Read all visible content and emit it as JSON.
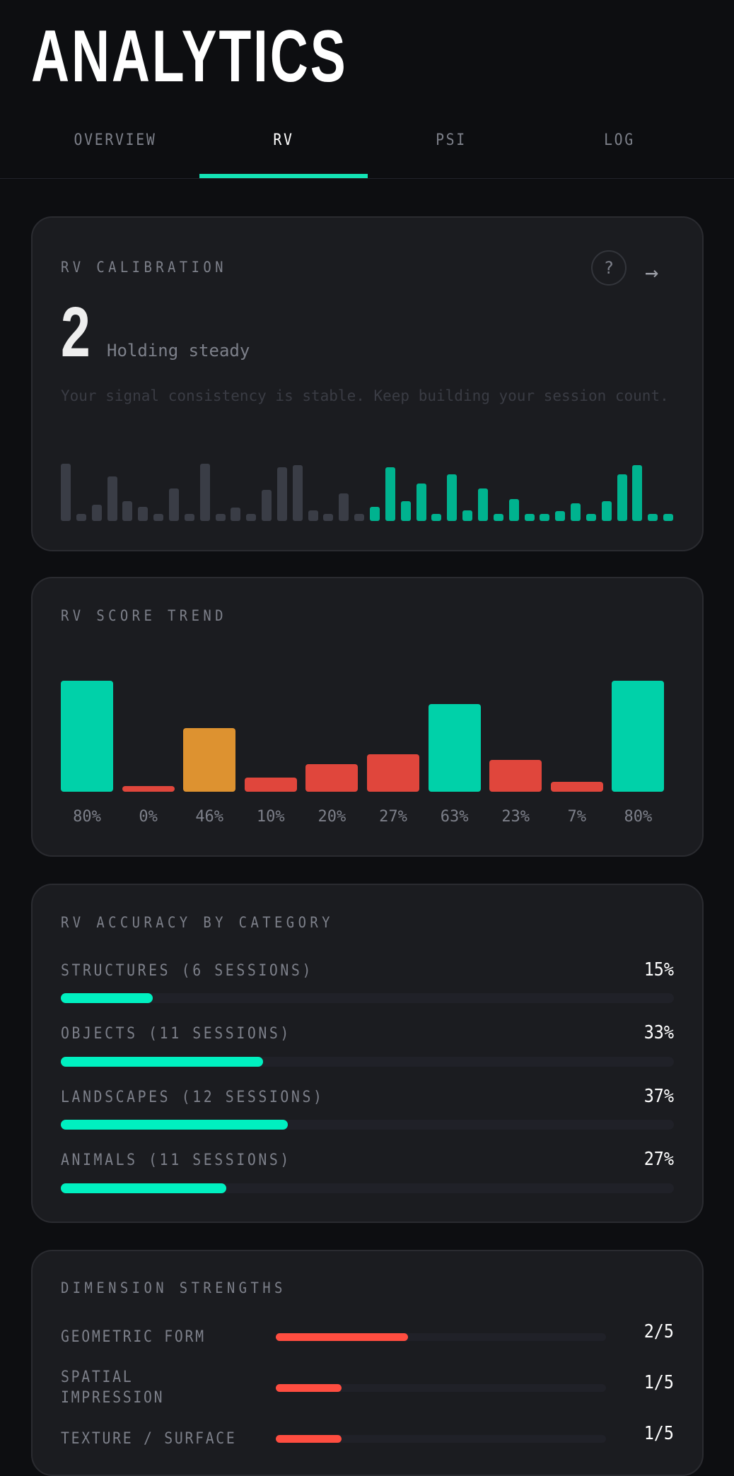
{
  "header": {
    "title": "ANALYTICS"
  },
  "tabs": [
    {
      "label": "OVERVIEW",
      "active": false
    },
    {
      "label": "RV",
      "active": true
    },
    {
      "label": "PSI",
      "active": false
    },
    {
      "label": "LOG",
      "active": false
    }
  ],
  "colors": {
    "accent": "#13e3b5",
    "good": "#00d1a9",
    "mid": "#dd9230",
    "bad": "#e0463c",
    "muted_bar": "#3a3d46",
    "signal_bar": "#00b38f",
    "dimension": "#ff4d40"
  },
  "calibration": {
    "label": "RV CALIBRATION",
    "help_icon": "question-circle-icon",
    "arrow_icon": "arrow-right-icon",
    "value": "2",
    "status": "Holding steady",
    "description": "Your signal consistency is stable. Keep building your session count.",
    "signal_bars": [
      {
        "v": 1.0,
        "a": false
      },
      {
        "v": 0.12,
        "a": false
      },
      {
        "v": 0.29,
        "a": false
      },
      {
        "v": 0.78,
        "a": false
      },
      {
        "v": 0.35,
        "a": false
      },
      {
        "v": 0.25,
        "a": false
      },
      {
        "v": 0.12,
        "a": false
      },
      {
        "v": 0.57,
        "a": false
      },
      {
        "v": 0.12,
        "a": false
      },
      {
        "v": 1.0,
        "a": false
      },
      {
        "v": 0.12,
        "a": false
      },
      {
        "v": 0.23,
        "a": false
      },
      {
        "v": 0.12,
        "a": false
      },
      {
        "v": 0.54,
        "a": false
      },
      {
        "v": 0.94,
        "a": false
      },
      {
        "v": 0.97,
        "a": false
      },
      {
        "v": 0.19,
        "a": false
      },
      {
        "v": 0.12,
        "a": false
      },
      {
        "v": 0.48,
        "a": false
      },
      {
        "v": 0.12,
        "a": false
      },
      {
        "v": 0.25,
        "a": true
      },
      {
        "v": 0.94,
        "a": true
      },
      {
        "v": 0.35,
        "a": true
      },
      {
        "v": 0.66,
        "a": true
      },
      {
        "v": 0.12,
        "a": true
      },
      {
        "v": 0.81,
        "a": true
      },
      {
        "v": 0.19,
        "a": true
      },
      {
        "v": 0.57,
        "a": true
      },
      {
        "v": 0.12,
        "a": true
      },
      {
        "v": 0.38,
        "a": true
      },
      {
        "v": 0.12,
        "a": true
      },
      {
        "v": 0.12,
        "a": true
      },
      {
        "v": 0.17,
        "a": true
      },
      {
        "v": 0.31,
        "a": true
      },
      {
        "v": 0.12,
        "a": true
      },
      {
        "v": 0.35,
        "a": true
      },
      {
        "v": 0.81,
        "a": true
      },
      {
        "v": 0.97,
        "a": true
      },
      {
        "v": 0.12,
        "a": true
      },
      {
        "v": 0.12,
        "a": true
      }
    ]
  },
  "chart_data": {
    "type": "bar",
    "title": "RV SCORE TREND",
    "values": [
      80,
      0,
      46,
      10,
      20,
      27,
      63,
      23,
      7,
      80
    ],
    "labels": [
      "80%",
      "0%",
      "46%",
      "10%",
      "20%",
      "27%",
      "63%",
      "23%",
      "7%",
      "80%"
    ],
    "ylim": [
      0,
      80
    ]
  },
  "accuracy": {
    "label": "RV ACCURACY BY CATEGORY",
    "rows": [
      {
        "name": "STRUCTURES (6 SESSIONS)",
        "value": "15%",
        "pct": 15
      },
      {
        "name": "OBJECTS (11 SESSIONS)",
        "value": "33%",
        "pct": 33
      },
      {
        "name": "LANDSCAPES (12 SESSIONS)",
        "value": "37%",
        "pct": 37
      },
      {
        "name": "ANIMALS (11 SESSIONS)",
        "value": "27%",
        "pct": 27
      }
    ]
  },
  "dimensions": {
    "label": "DIMENSION STRENGTHS",
    "rows": [
      {
        "line1": "GEOMETRIC FORM",
        "line2": "",
        "value": "2/5",
        "score": 2
      },
      {
        "line1": "SPATIAL",
        "line2": "IMPRESSION",
        "value": "1/5",
        "score": 1
      },
      {
        "line1": "TEXTURE / SURFACE",
        "line2": "",
        "value": "1/5",
        "score": 1
      }
    ]
  }
}
